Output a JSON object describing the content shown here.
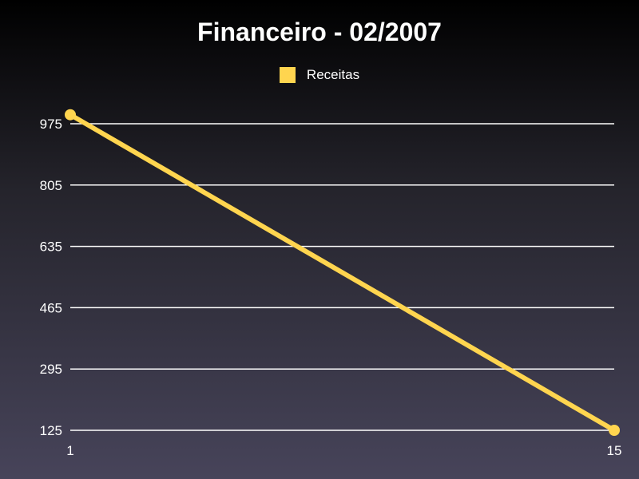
{
  "chart_data": {
    "type": "line",
    "title": "Financeiro - 02/2007",
    "xlabel": "",
    "ylabel": "",
    "x_ticks": [
      "1",
      "15"
    ],
    "y_ticks": [
      "975",
      "805",
      "635",
      "465",
      "295",
      "125"
    ],
    "y_tick_values": [
      975,
      805,
      635,
      465,
      295,
      125
    ],
    "ylim": [
      125,
      975
    ],
    "xlim": [
      1,
      15
    ],
    "grid": true,
    "legend_placement": "top-center",
    "series": [
      {
        "name": "Receitas",
        "color": "#ffd54f",
        "x": [
          1,
          15
        ],
        "y": [
          1000,
          125
        ]
      }
    ]
  }
}
